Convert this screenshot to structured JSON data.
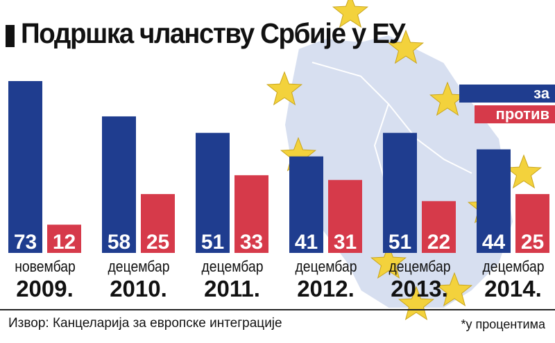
{
  "title": "Подршка чланству Србије у ЕУ",
  "legend": {
    "za": "за",
    "protiv": "против"
  },
  "colors": {
    "za": "#1f3d8f",
    "protiv": "#d63a4a",
    "map": "#d7dff0",
    "star": "#f3d23c"
  },
  "source": "Извор: Канцеларија за европске интеграције",
  "note": "*у процентима",
  "chart_data": {
    "type": "bar",
    "title": "Подршка чланству Србије у ЕУ",
    "categories": [
      {
        "month": "новембар",
        "year": "2009."
      },
      {
        "month": "децембар",
        "year": "2010."
      },
      {
        "month": "децембар",
        "year": "2011."
      },
      {
        "month": "децембар",
        "year": "2012."
      },
      {
        "month": "децембар",
        "year": "2013."
      },
      {
        "month": "децембар",
        "year": "2014."
      }
    ],
    "series": [
      {
        "name": "за",
        "values": [
          73,
          58,
          51,
          41,
          51,
          44
        ]
      },
      {
        "name": "против",
        "values": [
          12,
          25,
          33,
          31,
          22,
          25
        ]
      }
    ],
    "ylim": [
      0,
      100
    ],
    "unit": "*у процентима",
    "legend_position": "top-right"
  }
}
